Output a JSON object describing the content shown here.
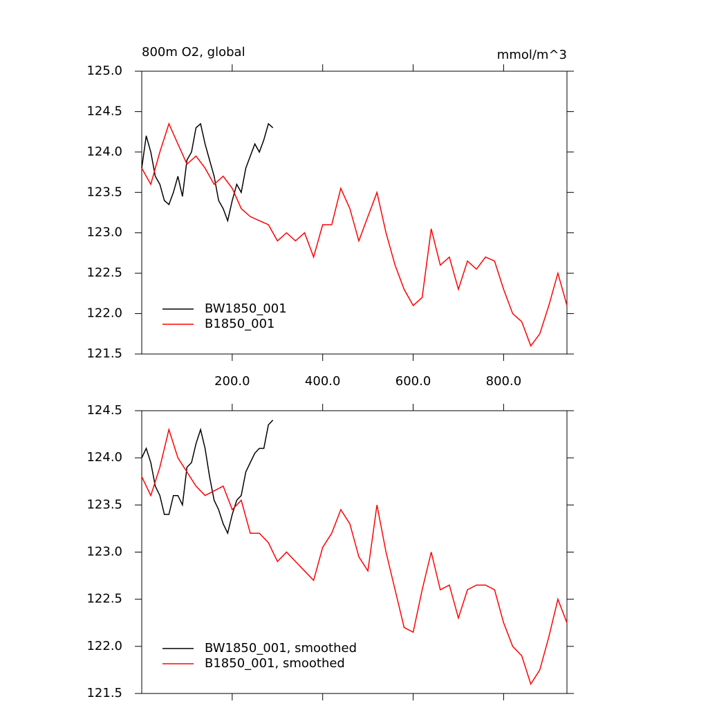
{
  "chart_data": [
    {
      "type": "line",
      "title": "800m O2, global",
      "units": "mmol/m^3",
      "xlim": [
        0,
        940
      ],
      "ylim": [
        121.5,
        125.0
      ],
      "xticks": [
        {
          "value": 200,
          "label": "200.0"
        },
        {
          "value": 400,
          "label": "400.0"
        },
        {
          "value": 600,
          "label": "600.0"
        },
        {
          "value": 800,
          "label": "800.0"
        }
      ],
      "yticks": [
        {
          "value": 121.5,
          "label": "121.5"
        },
        {
          "value": 122,
          "label": "122.0"
        },
        {
          "value": 122.5,
          "label": "122.5"
        },
        {
          "value": 123,
          "label": "123.0"
        },
        {
          "value": 123.5,
          "label": "123.5"
        },
        {
          "value": 124,
          "label": "124.0"
        },
        {
          "value": 124.5,
          "label": "124.5"
        },
        {
          "value": 125,
          "label": "125.0"
        }
      ],
      "legend": "lower left",
      "series": [
        {
          "name": "BW1850_001",
          "color": "#000000",
          "x": [
            0,
            10,
            20,
            30,
            40,
            50,
            60,
            70,
            80,
            90,
            100,
            110,
            120,
            130,
            140,
            150,
            160,
            170,
            180,
            190,
            200,
            210,
            220,
            230,
            240,
            250,
            260,
            270,
            280,
            290
          ],
          "values": [
            123.8,
            124.2,
            124.0,
            123.7,
            123.6,
            123.4,
            123.35,
            123.5,
            123.7,
            123.45,
            123.9,
            124.0,
            124.3,
            124.35,
            124.1,
            123.9,
            123.7,
            123.4,
            123.3,
            123.15,
            123.4,
            123.6,
            123.5,
            123.8,
            123.95,
            124.1,
            124.0,
            124.15,
            124.35,
            124.3
          ]
        },
        {
          "name": "B1850_001",
          "color": "#ff0000",
          "x": [
            0,
            20,
            40,
            60,
            80,
            100,
            120,
            140,
            160,
            180,
            200,
            220,
            240,
            260,
            280,
            300,
            320,
            340,
            360,
            380,
            400,
            420,
            440,
            460,
            480,
            500,
            520,
            540,
            560,
            580,
            600,
            620,
            640,
            660,
            680,
            700,
            720,
            740,
            760,
            780,
            800,
            820,
            840,
            860,
            880,
            900,
            920,
            940
          ],
          "values": [
            123.8,
            123.6,
            124.0,
            124.35,
            124.1,
            123.85,
            123.95,
            123.8,
            123.6,
            123.7,
            123.55,
            123.3,
            123.2,
            123.15,
            123.1,
            122.9,
            123.0,
            122.9,
            123.0,
            122.7,
            123.1,
            123.1,
            123.55,
            123.3,
            122.9,
            123.2,
            123.5,
            123.0,
            122.6,
            122.3,
            122.1,
            122.2,
            123.05,
            122.6,
            122.7,
            122.3,
            122.65,
            122.55,
            122.7,
            122.65,
            122.3,
            122.0,
            121.9,
            121.6,
            121.75,
            122.1,
            122.5,
            122.1
          ]
        }
      ]
    },
    {
      "type": "line",
      "xlim": [
        0,
        940
      ],
      "ylim": [
        121.5,
        124.5
      ],
      "xticks": [
        200,
        400,
        600,
        800
      ],
      "yticks": [
        {
          "value": 121.5,
          "label": "121.5"
        },
        {
          "value": 122,
          "label": "122.0"
        },
        {
          "value": 122.5,
          "label": "122.5"
        },
        {
          "value": 123,
          "label": "123.0"
        },
        {
          "value": 123.5,
          "label": "123.5"
        },
        {
          "value": 124,
          "label": "124.0"
        },
        {
          "value": 124.5,
          "label": "124.5"
        }
      ],
      "legend": "lower left",
      "series": [
        {
          "name": "BW1850_001, smoothed",
          "color": "#000000",
          "x": [
            0,
            10,
            20,
            30,
            40,
            50,
            60,
            70,
            80,
            90,
            100,
            110,
            120,
            130,
            140,
            150,
            160,
            170,
            180,
            190,
            200,
            210,
            220,
            230,
            240,
            250,
            260,
            270,
            280,
            290
          ],
          "values": [
            124.0,
            124.1,
            123.95,
            123.7,
            123.6,
            123.4,
            123.4,
            123.6,
            123.6,
            123.5,
            123.9,
            123.95,
            124.15,
            124.3,
            124.1,
            123.8,
            123.55,
            123.45,
            123.3,
            123.2,
            123.4,
            123.55,
            123.6,
            123.85,
            123.95,
            124.05,
            124.1,
            124.1,
            124.35,
            124.4
          ]
        },
        {
          "name": "B1850_001, smoothed",
          "color": "#ff0000",
          "x": [
            0,
            20,
            40,
            60,
            80,
            100,
            120,
            140,
            160,
            180,
            200,
            220,
            240,
            260,
            280,
            300,
            320,
            340,
            360,
            380,
            400,
            420,
            440,
            460,
            480,
            500,
            520,
            540,
            560,
            580,
            600,
            620,
            640,
            660,
            680,
            700,
            720,
            740,
            760,
            780,
            800,
            820,
            840,
            860,
            880,
            900,
            920,
            940
          ],
          "values": [
            123.8,
            123.6,
            123.9,
            124.3,
            124.0,
            123.85,
            123.7,
            123.6,
            123.65,
            123.7,
            123.45,
            123.55,
            123.2,
            123.2,
            123.1,
            122.9,
            123.0,
            122.9,
            122.8,
            122.7,
            123.05,
            123.2,
            123.45,
            123.3,
            122.95,
            122.8,
            123.5,
            123.0,
            122.6,
            122.2,
            122.15,
            122.6,
            123.0,
            122.6,
            122.65,
            122.3,
            122.6,
            122.65,
            122.65,
            122.6,
            122.25,
            122.0,
            121.9,
            121.6,
            121.75,
            122.1,
            122.5,
            122.25
          ]
        }
      ]
    }
  ]
}
